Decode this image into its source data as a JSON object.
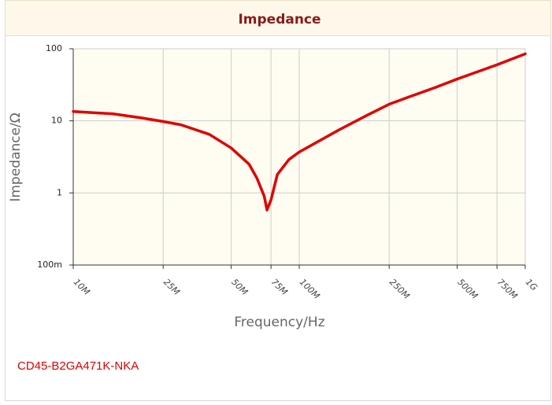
{
  "chart_data": {
    "type": "line",
    "title": "Impedance",
    "xlabel": "Frequency/Hz",
    "ylabel": "Impedance/Ω",
    "xscale": "log",
    "yscale": "log",
    "grid": true,
    "xlim": [
      10000000,
      1000000000
    ],
    "ylim": [
      0.1,
      100
    ],
    "xticks": [
      {
        "value": 10000000,
        "label": "10M"
      },
      {
        "value": 25000000,
        "label": "25M"
      },
      {
        "value": 50000000,
        "label": "50M"
      },
      {
        "value": 75000000,
        "label": "75M"
      },
      {
        "value": 100000000,
        "label": "100M"
      },
      {
        "value": 250000000,
        "label": "250M"
      },
      {
        "value": 500000000,
        "label": "500M"
      },
      {
        "value": 750000000,
        "label": "750M"
      },
      {
        "value": 1000000000,
        "label": "1G"
      }
    ],
    "yticks": [
      {
        "value": 0.1,
        "label": "100m"
      },
      1,
      10,
      100
    ],
    "x": [
      10000000,
      15000000,
      20000000,
      25000000,
      30000000,
      40000000,
      50000000,
      60000000,
      65000000,
      70000000,
      72000000,
      75000000,
      80000000,
      90000000,
      100000000,
      150000000,
      200000000,
      250000000,
      300000000,
      400000000,
      500000000,
      750000000,
      1000000000
    ],
    "series": [
      {
        "name": "CD45-B2GA471K-NKA",
        "color": "#e00000",
        "values": [
          13.5,
          12.5,
          11,
          9.8,
          8.8,
          6.5,
          4.2,
          2.5,
          1.6,
          0.9,
          0.58,
          0.8,
          1.8,
          2.9,
          3.7,
          7.5,
          12,
          17,
          21,
          29,
          38,
          60,
          85
        ]
      }
    ]
  }
}
